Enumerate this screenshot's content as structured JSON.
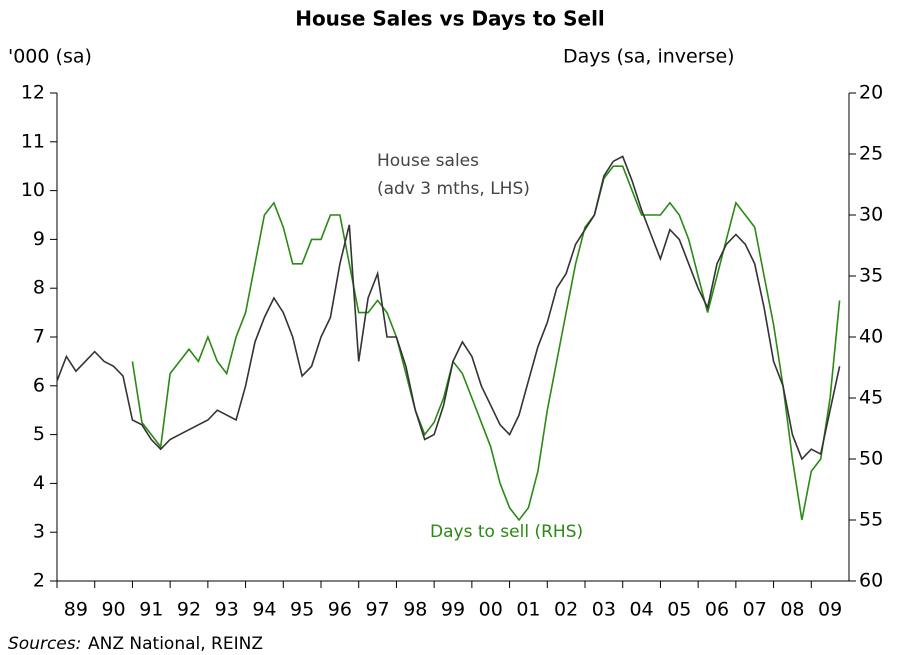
{
  "chart_data": {
    "type": "line",
    "title": "House Sales vs Days to Sell",
    "ylabel": "'000 (sa)",
    "y2label": "Days (sa, inverse)",
    "source_label": "Sources:",
    "source": "ANZ National, REINZ",
    "annotations": [
      "House sales",
      "(adv 3 mths, LHS)",
      "Days to sell (RHS)"
    ],
    "xlim": [
      1989,
      2010
    ],
    "xticks": [
      {
        "value": 1989,
        "label": "89"
      },
      {
        "value": 1990,
        "label": "90"
      },
      {
        "value": 1991,
        "label": "91"
      },
      {
        "value": 1992,
        "label": "92"
      },
      {
        "value": 1993,
        "label": "93"
      },
      {
        "value": 1994,
        "label": "94"
      },
      {
        "value": 1995,
        "label": "95"
      },
      {
        "value": 1996,
        "label": "96"
      },
      {
        "value": 1997,
        "label": "97"
      },
      {
        "value": 1998,
        "label": "98"
      },
      {
        "value": 1999,
        "label": "99"
      },
      {
        "value": 2000,
        "label": "00"
      },
      {
        "value": 2001,
        "label": "01"
      },
      {
        "value": 2002,
        "label": "02"
      },
      {
        "value": 2003,
        "label": "03"
      },
      {
        "value": 2004,
        "label": "04"
      },
      {
        "value": 2005,
        "label": "05"
      },
      {
        "value": 2006,
        "label": "06"
      },
      {
        "value": 2007,
        "label": "07"
      },
      {
        "value": 2008,
        "label": "08"
      },
      {
        "value": 2009,
        "label": "09"
      }
    ],
    "ylim": [
      2,
      12
    ],
    "yticks": [
      2,
      3,
      4,
      5,
      6,
      7,
      8,
      9,
      10,
      11,
      12
    ],
    "y2lim": [
      60,
      20
    ],
    "y2ticks": [
      60,
      55,
      50,
      45,
      40,
      35,
      30,
      25,
      20
    ],
    "series": [
      {
        "name": "House sales",
        "color": "#333333",
        "x": [
          1989,
          1989.25,
          1989.5,
          1989.75,
          1990,
          1990.25,
          1990.5,
          1990.75,
          1991,
          1991.25,
          1991.5,
          1991.75,
          1992,
          1992.25,
          1992.5,
          1992.75,
          1993,
          1993.25,
          1993.5,
          1993.75,
          1994,
          1994.25,
          1994.5,
          1994.75,
          1995,
          1995.25,
          1995.5,
          1995.75,
          1996,
          1996.25,
          1996.5,
          1996.75,
          1997,
          1997.25,
          1997.5,
          1997.75,
          1998,
          1998.25,
          1998.5,
          1998.75,
          1999,
          1999.25,
          1999.5,
          1999.75,
          2000,
          2000.25,
          2000.5,
          2000.75,
          2001,
          2001.25,
          2001.5,
          2001.75,
          2002,
          2002.25,
          2002.5,
          2002.75,
          2003,
          2003.25,
          2003.5,
          2003.75,
          2004,
          2004.25,
          2004.5,
          2004.75,
          2005,
          2005.25,
          2005.5,
          2005.75,
          2006,
          2006.25,
          2006.5,
          2006.75,
          2007,
          2007.25,
          2007.5,
          2007.75,
          2008,
          2008.25,
          2008.5,
          2008.75,
          2009,
          2009.25,
          2009.5,
          2009.75
        ],
        "values": [
          6.1,
          6.6,
          6.3,
          6.5,
          6.7,
          6.5,
          6.4,
          6.2,
          5.3,
          5.2,
          4.9,
          4.7,
          4.9,
          5.0,
          5.1,
          5.2,
          5.3,
          5.5,
          5.4,
          5.3,
          6.0,
          6.9,
          7.4,
          7.8,
          7.5,
          7.0,
          6.2,
          6.4,
          7.0,
          7.4,
          8.5,
          9.3,
          6.5,
          7.8,
          8.3,
          7.0,
          7.0,
          6.4,
          5.5,
          4.9,
          5.0,
          5.6,
          6.5,
          6.9,
          6.6,
          6.0,
          5.6,
          5.2,
          5.0,
          5.4,
          6.1,
          6.8,
          7.3,
          8.0,
          8.3,
          8.9,
          9.2,
          9.5,
          10.3,
          10.6,
          10.7,
          10.2,
          9.6,
          9.1,
          8.6,
          9.2,
          9.0,
          8.5,
          8.0,
          7.6,
          8.5,
          8.9,
          9.1,
          8.9,
          8.5,
          7.6,
          6.5,
          6.0,
          5.0,
          4.5,
          4.7,
          4.6,
          5.5,
          6.4
        ]
      },
      {
        "name": "Days to sell",
        "color": "#2a8a14",
        "axis": "y2",
        "x": [
          1991,
          1991.25,
          1991.5,
          1991.75,
          1992,
          1992.25,
          1992.5,
          1992.75,
          1993,
          1993.25,
          1993.5,
          1993.75,
          1994,
          1994.25,
          1994.5,
          1994.75,
          1995,
          1995.25,
          1995.5,
          1995.75,
          1996,
          1996.25,
          1996.5,
          1996.75,
          1997,
          1997.25,
          1997.5,
          1997.75,
          1998,
          1998.25,
          1998.5,
          1998.75,
          1999,
          1999.25,
          1999.5,
          1999.75,
          2000,
          2000.25,
          2000.5,
          2000.75,
          2001,
          2001.25,
          2001.5,
          2001.75,
          2002,
          2002.25,
          2002.5,
          2002.75,
          2003,
          2003.25,
          2003.5,
          2003.75,
          2004,
          2004.25,
          2004.5,
          2004.75,
          2005,
          2005.25,
          2005.5,
          2005.75,
          2006,
          2006.25,
          2006.5,
          2006.75,
          2007,
          2007.25,
          2007.5,
          2007.75,
          2008,
          2008.25,
          2008.5,
          2008.75,
          2009,
          2009.25,
          2009.5,
          2009.75
        ],
        "values": [
          42,
          47,
          48,
          49,
          43,
          42,
          41,
          42,
          40,
          42,
          43,
          40,
          38,
          34,
          30,
          29,
          31,
          34,
          34,
          32,
          32,
          30,
          30,
          34,
          38,
          38,
          37,
          38,
          40,
          43,
          46,
          48,
          47,
          45,
          42,
          43,
          45,
          47,
          49,
          52,
          54,
          55,
          54,
          51,
          46,
          42,
          38,
          34,
          31,
          30,
          27,
          26,
          26,
          28,
          30,
          30,
          30,
          29,
          30,
          32,
          35,
          38,
          35,
          32,
          29,
          30,
          31,
          35,
          39,
          44,
          50,
          55,
          51,
          50,
          45,
          37
        ]
      }
    ]
  }
}
